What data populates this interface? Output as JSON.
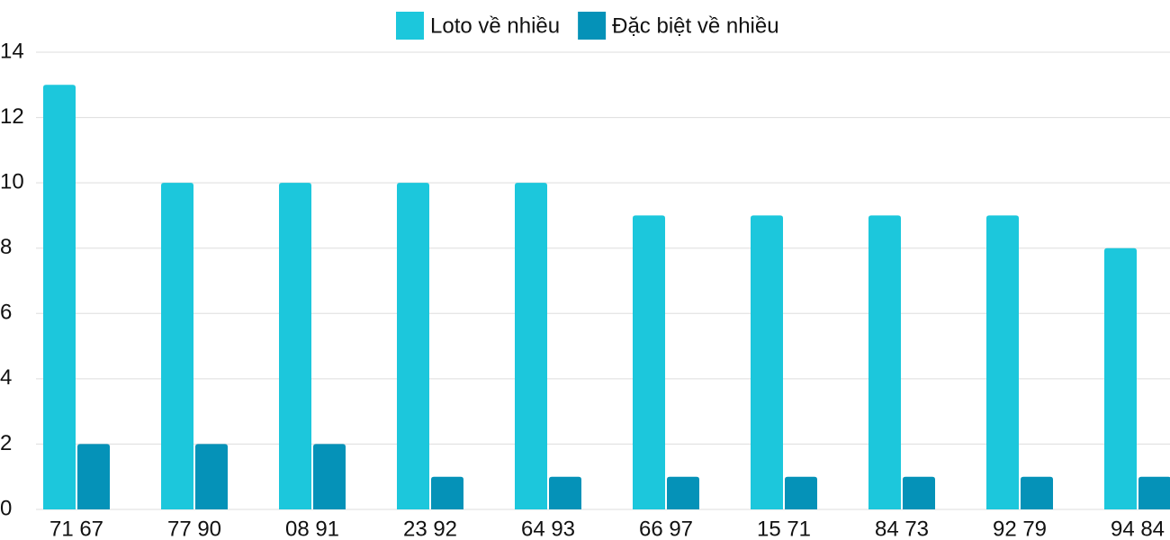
{
  "chart_data": {
    "type": "bar",
    "categories": [
      "71 67",
      "77 90",
      "08 91",
      "23 92",
      "64 93",
      "66 97",
      "15 71",
      "84 73",
      "92 79",
      "94 84"
    ],
    "series": [
      {
        "name": "Loto về nhiều",
        "color": "#1cc7dc",
        "values": [
          13,
          10,
          10,
          10,
          10,
          9,
          9,
          9,
          9,
          8
        ]
      },
      {
        "name": "Đặc biệt về nhiều",
        "color": "#0592b8",
        "values": [
          2,
          2,
          2,
          1,
          1,
          1,
          1,
          1,
          1,
          1
        ]
      }
    ],
    "ylim": [
      0,
      14
    ],
    "yticks": [
      0,
      2,
      4,
      6,
      8,
      10,
      12,
      14
    ],
    "grid": true,
    "legend": "top"
  }
}
